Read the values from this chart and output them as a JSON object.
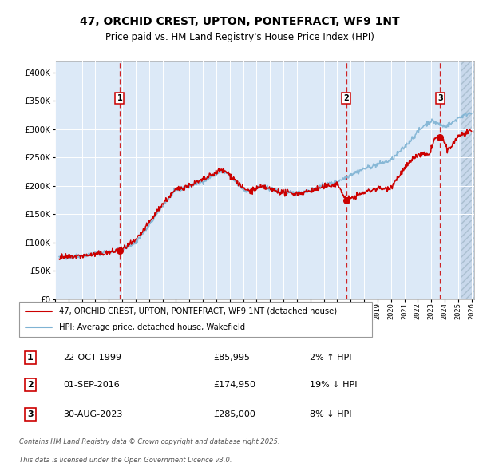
{
  "title": "47, ORCHID CREST, UPTON, PONTEFRACT, WF9 1NT",
  "subtitle": "Price paid vs. HM Land Registry's House Price Index (HPI)",
  "legend_property": "47, ORCHID CREST, UPTON, PONTEFRACT, WF9 1NT (detached house)",
  "legend_hpi": "HPI: Average price, detached house, Wakefield",
  "sale_points": [
    {
      "label": "1",
      "date": "22-OCT-1999",
      "price": 85995,
      "pct": "2%",
      "direction": "↑",
      "x_year": 1999.81
    },
    {
      "label": "2",
      "date": "01-SEP-2016",
      "price": 174950,
      "pct": "19%",
      "direction": "↓",
      "x_year": 2016.67
    },
    {
      "label": "3",
      "date": "30-AUG-2023",
      "price": 285000,
      "pct": "8%",
      "direction": "↓",
      "x_year": 2023.66
    }
  ],
  "footer_line1": "Contains HM Land Registry data © Crown copyright and database right 2025.",
  "footer_line2": "This data is licensed under the Open Government Licence v3.0.",
  "ylim": [
    0,
    420000
  ],
  "xlim_start": 1995.3,
  "xlim_end": 2026.2,
  "hatch_start": 2025.25,
  "plot_bg": "#dce9f7",
  "grid_color": "#ffffff",
  "red_line_color": "#cc0000",
  "blue_line_color": "#7fb3d3",
  "vline_color": "#cc0000",
  "sale_dot_color": "#cc0000",
  "box_edge_color": "#cc0000",
  "ytick_values": [
    0,
    50000,
    100000,
    150000,
    200000,
    250000,
    300000,
    350000,
    400000
  ]
}
